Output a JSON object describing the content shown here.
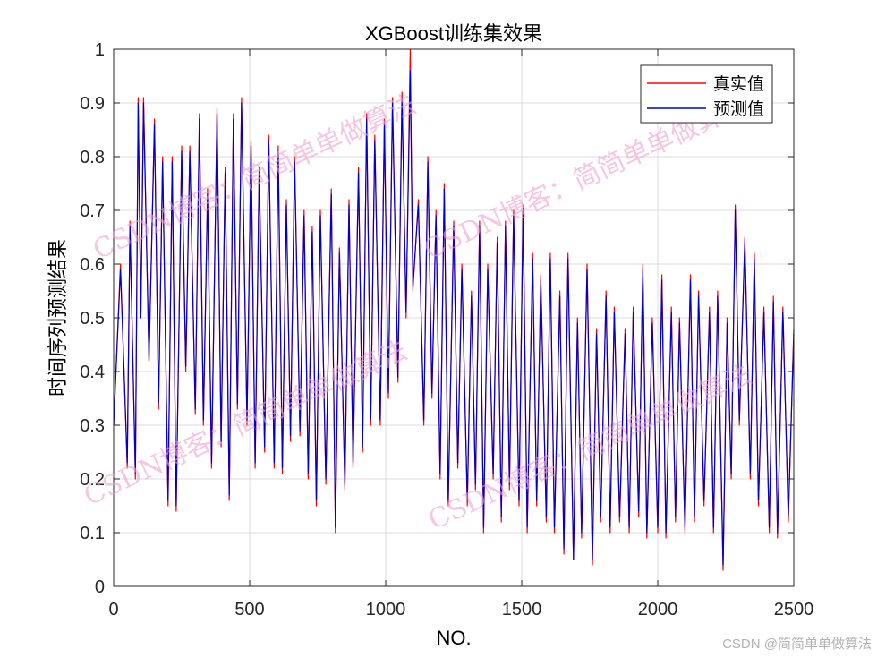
{
  "chart_data": {
    "type": "line",
    "title": "XGBoost训练集效果",
    "xlabel": "NO.",
    "ylabel": "时间序列预测结果",
    "xlim": [
      0,
      2500
    ],
    "ylim": [
      0,
      1
    ],
    "xticks": [
      0,
      500,
      1000,
      1500,
      2000,
      2500
    ],
    "xtick_labels": [
      "0",
      "500",
      "1000",
      "1500",
      "2000",
      "2500"
    ],
    "yticks": [
      0,
      0.1,
      0.2,
      0.3,
      0.4,
      0.5,
      0.6,
      0.7,
      0.8,
      0.9,
      1
    ],
    "ytick_labels": [
      "0",
      "0.1",
      "0.2",
      "0.3",
      "0.4",
      "0.5",
      "0.6",
      "0.7",
      "0.8",
      "0.9",
      "1"
    ],
    "grid": true,
    "legend_position": "top-right",
    "series": [
      {
        "name": "真实值",
        "color": "#ff0000",
        "x": [
          0,
          25,
          50,
          60,
          80,
          90,
          100,
          110,
          130,
          150,
          165,
          180,
          200,
          215,
          230,
          250,
          265,
          280,
          300,
          315,
          330,
          345,
          360,
          380,
          395,
          410,
          425,
          440,
          455,
          470,
          490,
          505,
          520,
          535,
          555,
          570,
          590,
          605,
          620,
          635,
          650,
          665,
          685,
          700,
          715,
          730,
          745,
          760,
          780,
          800,
          815,
          830,
          850,
          865,
          880,
          900,
          915,
          930,
          945,
          960,
          980,
          995,
          1010,
          1025,
          1045,
          1060,
          1075,
          1090,
          1100,
          1120,
          1140,
          1155,
          1170,
          1185,
          1200,
          1215,
          1230,
          1250,
          1265,
          1280,
          1300,
          1315,
          1330,
          1345,
          1360,
          1375,
          1395,
          1410,
          1425,
          1440,
          1455,
          1470,
          1490,
          1505,
          1520,
          1540,
          1555,
          1570,
          1590,
          1605,
          1620,
          1640,
          1655,
          1670,
          1690,
          1705,
          1720,
          1740,
          1760,
          1775,
          1790,
          1810,
          1825,
          1840,
          1860,
          1880,
          1895,
          1910,
          1930,
          1945,
          1960,
          1980,
          2000,
          2015,
          2030,
          2050,
          2065,
          2080,
          2100,
          2120,
          2135,
          2150,
          2170,
          2190,
          2205,
          2220,
          2240,
          2255,
          2270,
          2285,
          2300,
          2320,
          2340,
          2355,
          2370,
          2390,
          2410,
          2425,
          2440,
          2460,
          2480,
          2500
        ],
        "values": [
          0.3,
          0.6,
          0.22,
          0.68,
          0.2,
          0.91,
          0.5,
          0.91,
          0.42,
          0.87,
          0.33,
          0.8,
          0.15,
          0.8,
          0.14,
          0.82,
          0.4,
          0.82,
          0.32,
          0.88,
          0.3,
          0.74,
          0.22,
          0.89,
          0.26,
          0.78,
          0.16,
          0.88,
          0.33,
          0.91,
          0.3,
          0.83,
          0.22,
          0.78,
          0.25,
          0.84,
          0.22,
          0.82,
          0.21,
          0.72,
          0.27,
          0.8,
          0.28,
          0.7,
          0.2,
          0.67,
          0.15,
          0.7,
          0.19,
          0.74,
          0.1,
          0.63,
          0.18,
          0.72,
          0.22,
          0.78,
          0.25,
          0.88,
          0.3,
          0.84,
          0.3,
          0.87,
          0.35,
          0.91,
          0.38,
          0.92,
          0.5,
          1.0,
          0.55,
          0.72,
          0.3,
          0.8,
          0.35,
          0.7,
          0.2,
          0.75,
          0.15,
          0.68,
          0.22,
          0.6,
          0.15,
          0.55,
          0.18,
          0.68,
          0.1,
          0.6,
          0.2,
          0.65,
          0.12,
          0.68,
          0.18,
          0.7,
          0.15,
          0.71,
          0.1,
          0.62,
          0.15,
          0.58,
          0.12,
          0.62,
          0.1,
          0.55,
          0.06,
          0.62,
          0.05,
          0.5,
          0.09,
          0.6,
          0.04,
          0.48,
          0.12,
          0.55,
          0.1,
          0.52,
          0.12,
          0.48,
          0.1,
          0.52,
          0.13,
          0.6,
          0.09,
          0.5,
          0.1,
          0.58,
          0.09,
          0.52,
          0.12,
          0.5,
          0.1,
          0.58,
          0.12,
          0.55,
          0.15,
          0.52,
          0.1,
          0.55,
          0.03,
          0.5,
          0.2,
          0.71,
          0.3,
          0.65,
          0.2,
          0.62,
          0.15,
          0.52,
          0.1,
          0.54,
          0.09,
          0.52,
          0.12,
          0.48
        ]
      },
      {
        "name": "预测值",
        "color": "#0000cd",
        "x": [
          0,
          25,
          50,
          60,
          80,
          90,
          100,
          110,
          130,
          150,
          165,
          180,
          200,
          215,
          230,
          250,
          265,
          280,
          300,
          315,
          330,
          345,
          360,
          380,
          395,
          410,
          425,
          440,
          455,
          470,
          490,
          505,
          520,
          535,
          555,
          570,
          590,
          605,
          620,
          635,
          650,
          665,
          685,
          700,
          715,
          730,
          745,
          760,
          780,
          800,
          815,
          830,
          850,
          865,
          880,
          900,
          915,
          930,
          945,
          960,
          980,
          995,
          1010,
          1025,
          1045,
          1060,
          1075,
          1090,
          1100,
          1120,
          1140,
          1155,
          1170,
          1185,
          1200,
          1215,
          1230,
          1250,
          1265,
          1280,
          1300,
          1315,
          1330,
          1345,
          1360,
          1375,
          1395,
          1410,
          1425,
          1440,
          1455,
          1470,
          1490,
          1505,
          1520,
          1540,
          1555,
          1570,
          1590,
          1605,
          1620,
          1640,
          1655,
          1670,
          1690,
          1705,
          1720,
          1740,
          1760,
          1775,
          1790,
          1810,
          1825,
          1840,
          1860,
          1880,
          1895,
          1910,
          1930,
          1945,
          1960,
          1980,
          2000,
          2015,
          2030,
          2050,
          2065,
          2080,
          2100,
          2120,
          2135,
          2150,
          2170,
          2190,
          2205,
          2220,
          2240,
          2255,
          2270,
          2285,
          2300,
          2320,
          2340,
          2355,
          2370,
          2390,
          2410,
          2425,
          2440,
          2460,
          2480,
          2500
        ],
        "values": [
          0.3,
          0.59,
          0.23,
          0.67,
          0.21,
          0.9,
          0.5,
          0.9,
          0.42,
          0.86,
          0.34,
          0.79,
          0.16,
          0.79,
          0.15,
          0.81,
          0.41,
          0.81,
          0.33,
          0.87,
          0.31,
          0.73,
          0.23,
          0.88,
          0.27,
          0.77,
          0.17,
          0.87,
          0.34,
          0.9,
          0.31,
          0.82,
          0.23,
          0.77,
          0.26,
          0.83,
          0.23,
          0.81,
          0.22,
          0.71,
          0.28,
          0.79,
          0.29,
          0.69,
          0.21,
          0.66,
          0.16,
          0.69,
          0.2,
          0.73,
          0.11,
          0.62,
          0.19,
          0.71,
          0.23,
          0.77,
          0.26,
          0.87,
          0.31,
          0.83,
          0.31,
          0.86,
          0.36,
          0.9,
          0.39,
          0.91,
          0.51,
          0.96,
          0.56,
          0.71,
          0.31,
          0.79,
          0.36,
          0.69,
          0.21,
          0.74,
          0.16,
          0.67,
          0.23,
          0.59,
          0.16,
          0.54,
          0.19,
          0.67,
          0.11,
          0.59,
          0.21,
          0.64,
          0.13,
          0.67,
          0.19,
          0.69,
          0.16,
          0.7,
          0.11,
          0.61,
          0.16,
          0.57,
          0.13,
          0.61,
          0.11,
          0.54,
          0.07,
          0.61,
          0.05,
          0.49,
          0.1,
          0.59,
          0.05,
          0.47,
          0.13,
          0.54,
          0.11,
          0.51,
          0.13,
          0.47,
          0.11,
          0.51,
          0.14,
          0.59,
          0.1,
          0.49,
          0.11,
          0.57,
          0.1,
          0.51,
          0.13,
          0.49,
          0.11,
          0.57,
          0.13,
          0.54,
          0.16,
          0.51,
          0.11,
          0.54,
          0.04,
          0.49,
          0.21,
          0.7,
          0.31,
          0.64,
          0.21,
          0.61,
          0.16,
          0.51,
          0.11,
          0.53,
          0.1,
          0.51,
          0.13,
          0.47
        ]
      }
    ]
  },
  "watermarks": [
    "CSDN博客：简简单单做算法",
    "CSDN博客：简简单单做算法",
    "CSDN博客：简简单单做算法",
    "CSDN博客：简简单单做算法"
  ],
  "credit": "CSDN @简简单单做算法"
}
